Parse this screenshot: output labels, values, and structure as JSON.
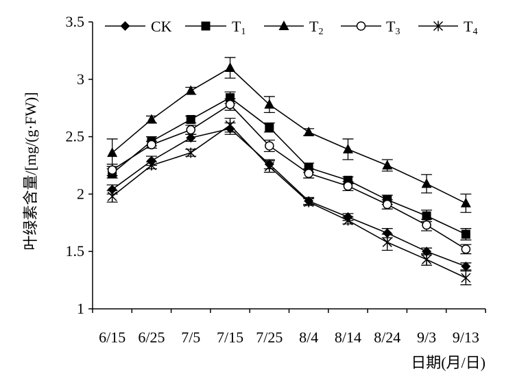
{
  "chart_data": {
    "type": "line",
    "title": "",
    "xlabel": "日期(月/日)",
    "ylabel": "叶绿素含量/[mg/(g·FW)]",
    "ylim": [
      1,
      3.5
    ],
    "yticks": [
      "1",
      "1.5",
      "2",
      "2.5",
      "3",
      "3.5"
    ],
    "categories": [
      "6/15",
      "6/25",
      "7/5",
      "7/15",
      "7/25",
      "8/4",
      "8/14",
      "8/24",
      "9/3",
      "9/13"
    ],
    "legend": {
      "placement": "top"
    },
    "series": [
      {
        "name": "CK",
        "sub": "",
        "marker": "diamond",
        "values": [
          2.04,
          2.29,
          2.49,
          2.57,
          2.26,
          1.94,
          1.8,
          1.66,
          1.5,
          1.37
        ],
        "errors": [
          0.04,
          0.04,
          0.03,
          0.05,
          0.04,
          0.03,
          0.03,
          0.04,
          0.03,
          0.03
        ]
      },
      {
        "name": "T",
        "sub": "1",
        "marker": "square",
        "values": [
          2.18,
          2.46,
          2.65,
          2.84,
          2.58,
          2.23,
          2.12,
          1.95,
          1.81,
          1.65
        ],
        "errors": [
          0.04,
          0.04,
          0.03,
          0.05,
          0.04,
          0.04,
          0.03,
          0.04,
          0.05,
          0.05
        ]
      },
      {
        "name": "T",
        "sub": "2",
        "marker": "triangle",
        "values": [
          2.36,
          2.65,
          2.9,
          3.1,
          2.78,
          2.54,
          2.39,
          2.25,
          2.09,
          1.92
        ],
        "errors": [
          0.12,
          0.03,
          0.03,
          0.09,
          0.07,
          0.03,
          0.09,
          0.05,
          0.08,
          0.08
        ]
      },
      {
        "name": "T",
        "sub": "3",
        "marker": "circle",
        "values": [
          2.21,
          2.43,
          2.56,
          2.78,
          2.42,
          2.18,
          2.07,
          1.91,
          1.73,
          1.52
        ],
        "errors": [
          0.05,
          0.03,
          0.04,
          0.05,
          0.05,
          0.04,
          0.04,
          0.04,
          0.05,
          0.04
        ]
      },
      {
        "name": "T",
        "sub": "4",
        "marker": "asterisk",
        "values": [
          1.98,
          2.25,
          2.36,
          2.6,
          2.24,
          1.93,
          1.77,
          1.58,
          1.43,
          1.27
        ],
        "errors": [
          0.05,
          0.03,
          0.03,
          0.06,
          0.05,
          0.03,
          0.03,
          0.07,
          0.05,
          0.06
        ]
      }
    ]
  }
}
